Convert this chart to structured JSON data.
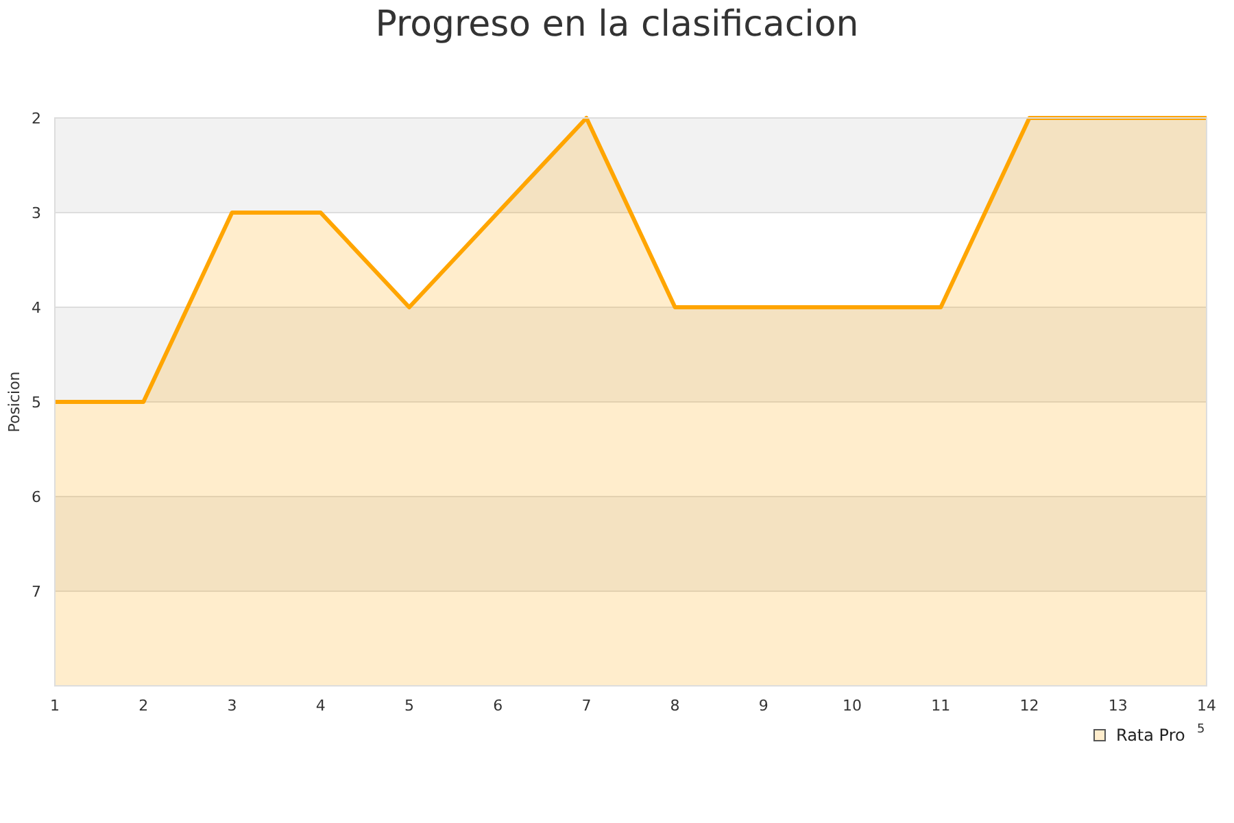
{
  "chart_data": {
    "type": "line",
    "title": "Progreso en la clasificacion",
    "ylabel": "Posicion",
    "x": [
      1,
      2,
      3,
      4,
      5,
      6,
      7,
      8,
      9,
      10,
      11,
      12,
      13,
      14
    ],
    "series": [
      {
        "name": "Rata Pro",
        "color": "#ffa500",
        "values": [
          5,
          5,
          3,
          3,
          4,
          3,
          2,
          4,
          4,
          4,
          4,
          2,
          2,
          2
        ],
        "lower": [
          5,
          5,
          3,
          3,
          4,
          3,
          2,
          4,
          4,
          4,
          4,
          2,
          2,
          2
        ],
        "upper": [
          8,
          8,
          8,
          8,
          8,
          8,
          8,
          8,
          8,
          8,
          8,
          8,
          8,
          8
        ]
      }
    ],
    "xlim": [
      1,
      14
    ],
    "xticks": [
      1,
      2,
      3,
      4,
      5,
      6,
      7,
      8,
      9,
      10,
      11,
      12,
      13,
      14
    ],
    "ylim": [
      8,
      2
    ],
    "yticks": [
      2,
      3,
      4,
      5,
      6,
      7
    ],
    "bands": [
      {
        "axis": "y",
        "from": 2,
        "to": 3,
        "color": "#f2f2f2"
      },
      {
        "axis": "y",
        "from": 4,
        "to": 5,
        "color": "#f2f2f2"
      },
      {
        "axis": "y",
        "from": 6,
        "to": 7,
        "color": "#f2f2f2"
      }
    ],
    "grid": "y",
    "legend": "bottom right",
    "marker": "none",
    "line_style": "solid",
    "annotations": [
      "5"
    ]
  }
}
